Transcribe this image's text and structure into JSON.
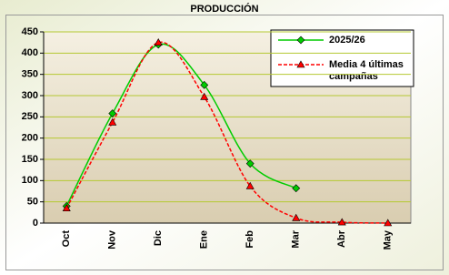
{
  "chart_data": {
    "type": "line",
    "title": "PRODUCCIÓN",
    "categories": [
      "Oct",
      "Nov",
      "Dic",
      "Ene",
      "Feb",
      "Mar",
      "Abr",
      "May"
    ],
    "series": [
      {
        "name": "2025/26",
        "color": "#00cc00",
        "marker": "diamond",
        "dashed": false,
        "values": [
          40,
          258,
          420,
          325,
          140,
          82,
          null,
          null
        ]
      },
      {
        "name": "Media 4 últimas campañas",
        "color": "#ff0000",
        "marker": "triangle",
        "dashed": true,
        "values": [
          35,
          237,
          425,
          297,
          87,
          12,
          2,
          0
        ]
      }
    ],
    "ylim": [
      0,
      450
    ],
    "yticks": [
      0,
      50,
      100,
      150,
      200,
      250,
      300,
      350,
      400,
      450
    ],
    "grid": true,
    "legend": "top-right",
    "smooth": true
  }
}
